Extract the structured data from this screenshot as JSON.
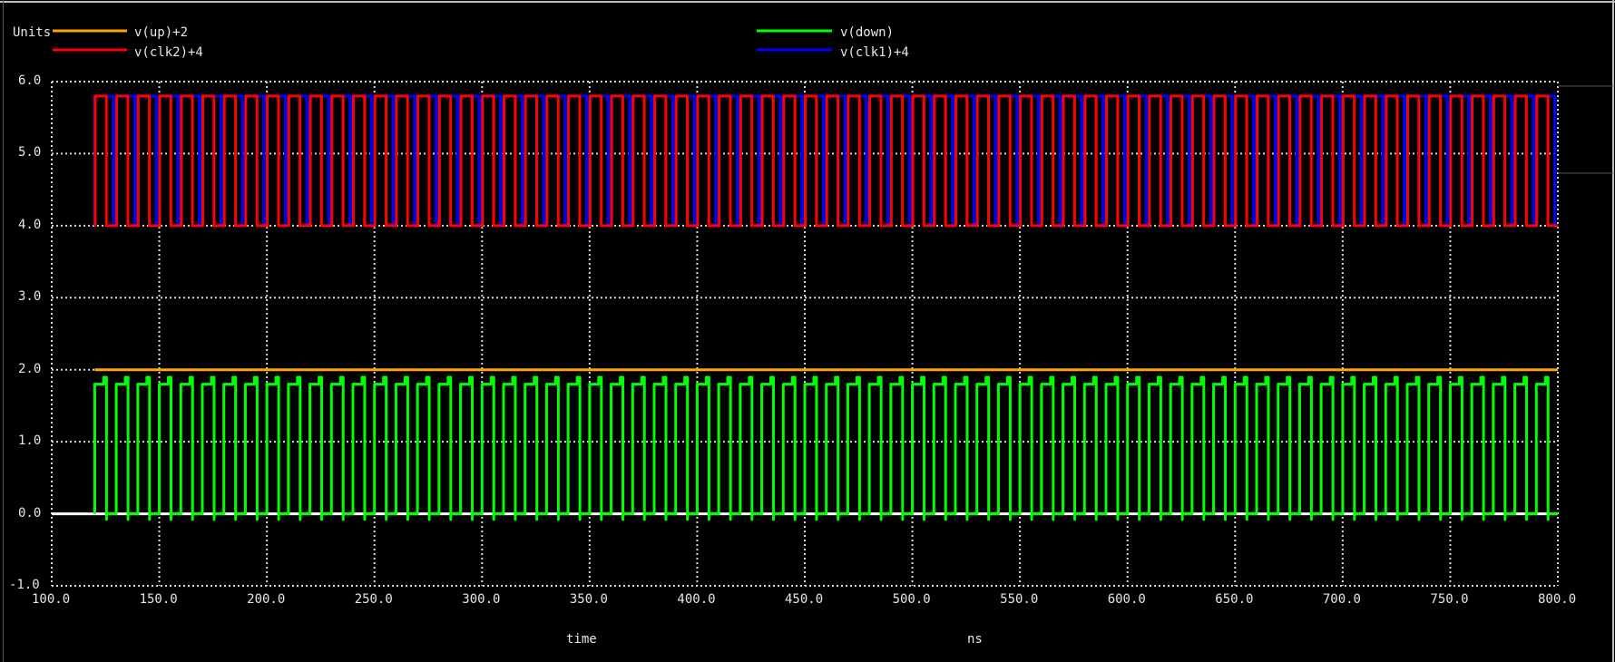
{
  "chart_data": {
    "type": "line",
    "title": "",
    "ylabel": "Units",
    "xlabel": "time",
    "xunit": "ns",
    "xlim": [
      100,
      800
    ],
    "ylim": [
      -1,
      6
    ],
    "grid": true,
    "legend_position": "top",
    "x_ticks": [
      "100.0",
      "150.0",
      "200.0",
      "250.0",
      "300.0",
      "350.0",
      "400.0",
      "450.0",
      "500.0",
      "550.0",
      "600.0",
      "650.0",
      "700.0",
      "750.0",
      "800.0"
    ],
    "y_ticks": [
      "-1.0",
      "0.0",
      "1.0",
      "2.0",
      "3.0",
      "4.0",
      "5.0",
      "6.0"
    ],
    "series": [
      {
        "name": "v(up)+2",
        "color": "#ffa500",
        "kind": "constant",
        "start": 120,
        "end": 800,
        "value": 2.0
      },
      {
        "name": "v(clk2)+4",
        "color": "#ff0000",
        "kind": "square",
        "start": 120,
        "end": 800,
        "low": 4.0,
        "high": 5.8,
        "period": 10,
        "high_time": 5.2,
        "phase": 0.2
      },
      {
        "name": "v(down)",
        "color": "#00ff00",
        "kind": "square",
        "start": 120,
        "end": 800,
        "low": 0.0,
        "high": 1.8,
        "period": 10,
        "high_time": 4.2,
        "phase": 0.0,
        "glitch": 0.08
      },
      {
        "name": "v(clk1)+4",
        "color": "#0000ff",
        "kind": "square",
        "start": 120,
        "end": 800,
        "low": 4.0,
        "high": 5.8,
        "period": 10,
        "high_time": 8.6,
        "phase": 0.0
      }
    ]
  },
  "legend": {
    "units_label": "Units",
    "items": [
      {
        "label": "v(up)+2",
        "color": "#ffa500"
      },
      {
        "label": "v(clk2)+4",
        "color": "#ff0000"
      },
      {
        "label": "v(down)",
        "color": "#00ff00"
      },
      {
        "label": "v(clk1)+4",
        "color": "#0000ff"
      }
    ]
  },
  "axis": {
    "x_label": "time",
    "x_unit": "ns"
  }
}
